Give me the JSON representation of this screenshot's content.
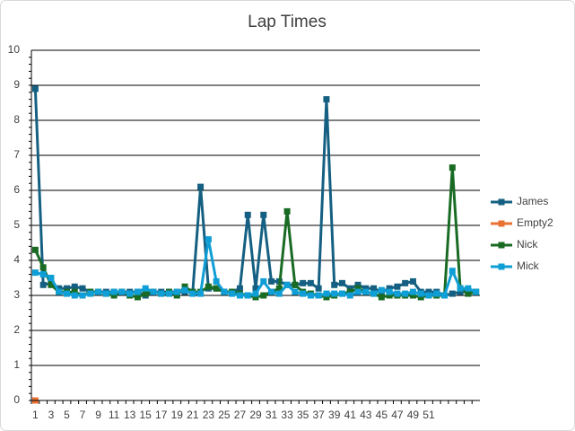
{
  "chart_data": {
    "type": "line",
    "title": "Lap Times",
    "categories": [
      1,
      null,
      3,
      null,
      5,
      null,
      7,
      null,
      9,
      null,
      11,
      null,
      13,
      null,
      15,
      null,
      17,
      null,
      19,
      null,
      21,
      null,
      23,
      null,
      25,
      null,
      27,
      null,
      29,
      null,
      31,
      null,
      33,
      null,
      35,
      null,
      37,
      null,
      39,
      null,
      41,
      null,
      43,
      null,
      45,
      null,
      47,
      null,
      49,
      null,
      51,
      null,
      null,
      null,
      null,
      null,
      null
    ],
    "series": [
      {
        "name": "James",
        "color": "#156082",
        "values": [
          8.9,
          3.3,
          3.35,
          3.2,
          3.2,
          3.25,
          3.2,
          3.1,
          3.1,
          3.1,
          3.1,
          3.1,
          3.1,
          3.1,
          3.0,
          3.1,
          3.1,
          3.1,
          3.1,
          3.1,
          3.1,
          6.1,
          3.2,
          3.2,
          3.1,
          3.1,
          3.2,
          5.3,
          3.2,
          5.3,
          3.4,
          3.4,
          3.3,
          3.3,
          3.35,
          3.35,
          3.2,
          8.6,
          3.3,
          3.35,
          3.2,
          3.3,
          3.2,
          3.2,
          3.1,
          3.2,
          3.25,
          3.35,
          3.4,
          3.1,
          3.1,
          3.1,
          3.0,
          3.05,
          3.1,
          3.1,
          3.1
        ]
      },
      {
        "name": "Empty2",
        "color": "#e97132",
        "values": [
          0,
          null,
          null,
          null,
          null,
          null,
          null,
          null,
          null,
          null,
          null,
          null,
          null,
          null,
          null,
          null,
          null,
          null,
          null,
          null,
          null,
          null,
          null,
          null,
          null,
          null,
          null,
          null,
          null,
          null,
          null,
          null,
          null,
          null,
          null,
          null,
          null,
          null,
          null,
          null,
          null,
          null,
          null,
          null,
          null,
          null,
          null,
          null,
          null,
          null,
          null,
          null,
          null,
          null,
          null,
          null,
          null
        ]
      },
      {
        "name": "Nick",
        "color": "#196b24",
        "values": [
          4.3,
          3.8,
          3.3,
          3.1,
          3.1,
          3.1,
          3.0,
          3.1,
          3.1,
          3.05,
          3.0,
          3.1,
          3.0,
          2.95,
          3.05,
          3.1,
          3.05,
          3.1,
          3.0,
          3.25,
          3.1,
          3.1,
          3.25,
          3.2,
          3.1,
          3.1,
          3.05,
          3.0,
          2.95,
          3.0,
          3.1,
          3.2,
          5.4,
          3.3,
          3.1,
          3.05,
          3.0,
          2.95,
          3.0,
          3.05,
          3.1,
          3.2,
          3.1,
          3.05,
          2.95,
          3.0,
          3.0,
          3.0,
          3.0,
          2.95,
          3.0,
          3.0,
          3.0,
          6.65,
          3.2,
          3.05,
          3.1
        ]
      },
      {
        "name": "Mick",
        "color": "#0f9ed5",
        "values": [
          3.65,
          3.6,
          3.5,
          3.1,
          3.05,
          3.0,
          3.0,
          3.05,
          3.1,
          3.05,
          3.1,
          3.1,
          3.05,
          3.1,
          3.2,
          3.1,
          3.05,
          3.05,
          3.1,
          3.15,
          3.05,
          3.05,
          4.6,
          3.4,
          3.1,
          3.05,
          3.0,
          3.0,
          3.05,
          3.4,
          3.1,
          3.05,
          3.3,
          3.1,
          3.05,
          3.0,
          3.0,
          3.05,
          3.05,
          3.05,
          3.0,
          3.1,
          3.1,
          3.05,
          3.15,
          3.1,
          3.05,
          3.05,
          3.1,
          3.05,
          3.0,
          3.05,
          3.0,
          3.7,
          3.2,
          3.2,
          3.1
        ]
      }
    ],
    "ylim": [
      0,
      10
    ],
    "yticks": [
      0,
      1,
      2,
      3,
      4,
      5,
      6,
      7,
      8,
      9,
      10
    ],
    "grid": true,
    "legend": "right"
  }
}
